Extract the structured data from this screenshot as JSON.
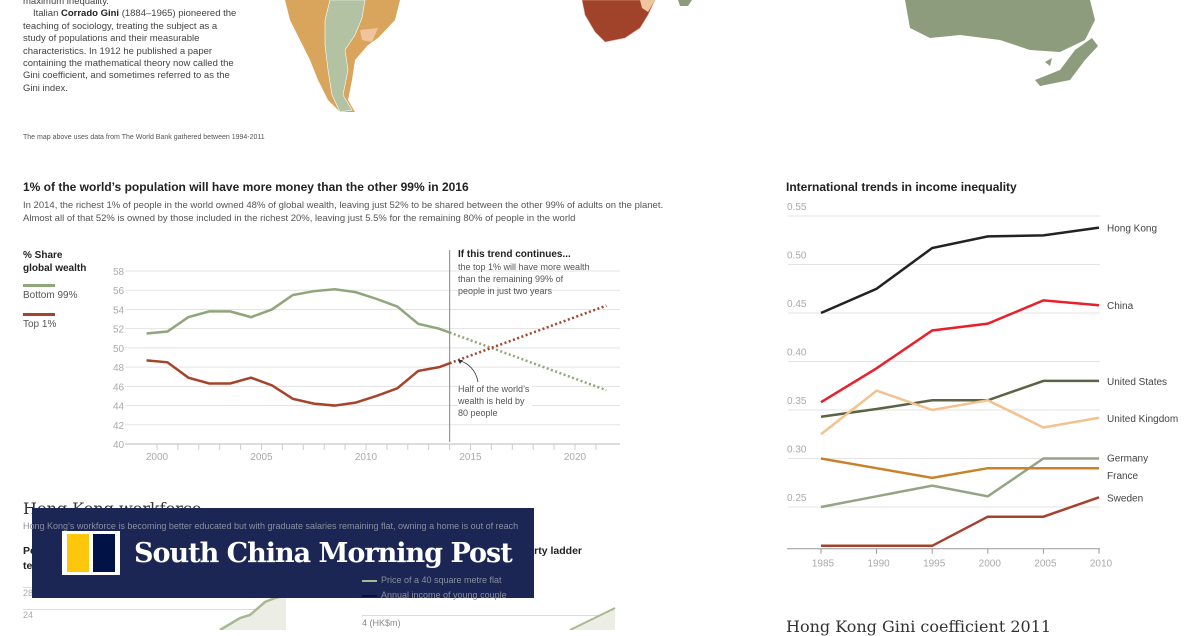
{
  "intro": {
    "line0": "maximum inequality.",
    "p1_pre": "Italian ",
    "p1_bold": "Corrado Gini",
    "p1_post": " (1884–1965) pioneered the teaching of sociology, treating the subject as a study of populations and their measurable characteristics. In 1912 he published a paper containing the mathematical theory now called the Gini coefficient, and sometimes referred to as the Gini index."
  },
  "map_note": "The map above uses data from The World Bank gathered between 1994-2011",
  "map_colors": {
    "green": "#b3c2a3",
    "orange": "#d9a45c",
    "light": "#f0c49c",
    "red": "#a0432a",
    "gray_green": "#8c9c7c"
  },
  "wealth": {
    "title": "1% of the world’s population will have more money than the other 99% in 2016",
    "subtitle": "In 2014, the richest 1% of people in the world owned 48% of global wealth, leaving just 52% to be shared between the other 99% of adults on the planet. Almost all of that 52% is owned by those included in the richest 20%, leaving just 5.5% for the remaining 80% of people in the world",
    "annotation_title": "If this trend continues...",
    "annotation_text": [
      "the top 1% will have more wealth",
      "than the remaining 99% of",
      "people in just two years"
    ],
    "callout": [
      "Half of the world’s",
      "wealth is held by",
      "80 people"
    ]
  },
  "chart_data": [
    {
      "type": "line",
      "ylabel": "% Share global wealth",
      "ylabel_lines": [
        "% Share",
        "global wealth"
      ],
      "ylim": [
        40,
        58
      ],
      "yticks": [
        40,
        42,
        44,
        46,
        48,
        50,
        52,
        54,
        56,
        58
      ],
      "xlim": [
        1998.5,
        2022
      ],
      "xticks": [
        2000,
        2005,
        2010,
        2015,
        2020
      ],
      "grid": true,
      "legend": "left",
      "series": [
        {
          "name": "Bottom 99%",
          "color": "#8fa57a",
          "x": [
            1999.5,
            2000.5,
            2001.5,
            2002.5,
            2003.5,
            2004.5,
            2005.5,
            2006.5,
            2007.5,
            2008.5,
            2009.5,
            2010.5,
            2011.5,
            2012.5,
            2013.5,
            2014
          ],
          "values": [
            51.5,
            51.7,
            53.2,
            53.8,
            53.8,
            53.2,
            54.0,
            55.5,
            55.9,
            56.1,
            55.8,
            55.1,
            54.3,
            52.5,
            52.0,
            51.6
          ],
          "projection": {
            "x": [
              2014,
              2021.5
            ],
            "values": [
              51.6,
              45.6
            ]
          }
        },
        {
          "name": "Top 1%",
          "color": "#a5432b",
          "x": [
            1999.5,
            2000.5,
            2001.5,
            2002.5,
            2003.5,
            2004.5,
            2005.5,
            2006.5,
            2007.5,
            2008.5,
            2009.5,
            2010.5,
            2011.5,
            2012.5,
            2013.5,
            2014
          ],
          "values": [
            48.7,
            48.5,
            46.9,
            46.3,
            46.3,
            46.9,
            46.1,
            44.7,
            44.2,
            44.0,
            44.3,
            45.0,
            45.8,
            47.6,
            48.0,
            48.4
          ],
          "projection": {
            "x": [
              2014,
              2021.5
            ],
            "values": [
              48.4,
              54.4
            ]
          }
        }
      ]
    },
    {
      "type": "line",
      "title": "International trends in income inequality",
      "ylim": [
        0.205,
        0.56
      ],
      "yticks": [
        "0.25",
        "0.30",
        "0.35",
        "0.40",
        "0.45",
        "0.50",
        "0.55"
      ],
      "categories": [
        1985,
        1990,
        1995,
        2000,
        2005,
        2010
      ],
      "grid": true,
      "legend": "right (end labels)",
      "series": [
        {
          "name": "Hong Kong",
          "color": "#222222",
          "values": [
            0.45,
            0.475,
            0.517,
            0.529,
            0.53,
            0.538
          ]
        },
        {
          "name": "China",
          "color": "#e8202a",
          "values": [
            0.358,
            0.393,
            0.432,
            0.439,
            0.463,
            0.458
          ]
        },
        {
          "name": "United States",
          "color": "#5a6444",
          "values": [
            0.343,
            0.351,
            0.36,
            0.36,
            0.38,
            0.38
          ]
        },
        {
          "name": "United Kingdom",
          "color": "#f2c28f",
          "values": [
            0.325,
            0.37,
            0.35,
            0.36,
            0.332,
            0.342
          ]
        },
        {
          "name": "Germany",
          "color": "#93a584",
          "values": [
            0.25,
            0.261,
            0.272,
            0.261,
            0.3,
            0.3
          ]
        },
        {
          "name": "France",
          "color": "#c9822a",
          "values": [
            0.3,
            0.29,
            0.28,
            0.29,
            0.29,
            0.29
          ]
        },
        {
          "name": "Sweden",
          "color": "#a3432d",
          "values": [
            0.21,
            0.21,
            0.21,
            0.24,
            0.24,
            0.26
          ]
        }
      ]
    }
  ],
  "workforce": {
    "title": "Hong Kong workforce",
    "subtitle": "Hong Kong’s workforce is becoming better educated but with graduate salaries remaining flat, owning a home is out of reach",
    "left_title": [
      "People",
      "tertiary"
    ],
    "left_ticks": [
      "28%",
      "24"
    ],
    "right_title": "property ladder",
    "legend": [
      "Price of a 40 square metre flat",
      "Annual income of young couple"
    ],
    "right_tick": "4 (HK$m)"
  },
  "gini_title": "Hong Kong Gini coefficient 2011",
  "banner": {
    "name": "South China Morning Post",
    "colors": {
      "bg": "#1b2654",
      "yellow": "#ffc70b",
      "navy": "#001246"
    }
  }
}
